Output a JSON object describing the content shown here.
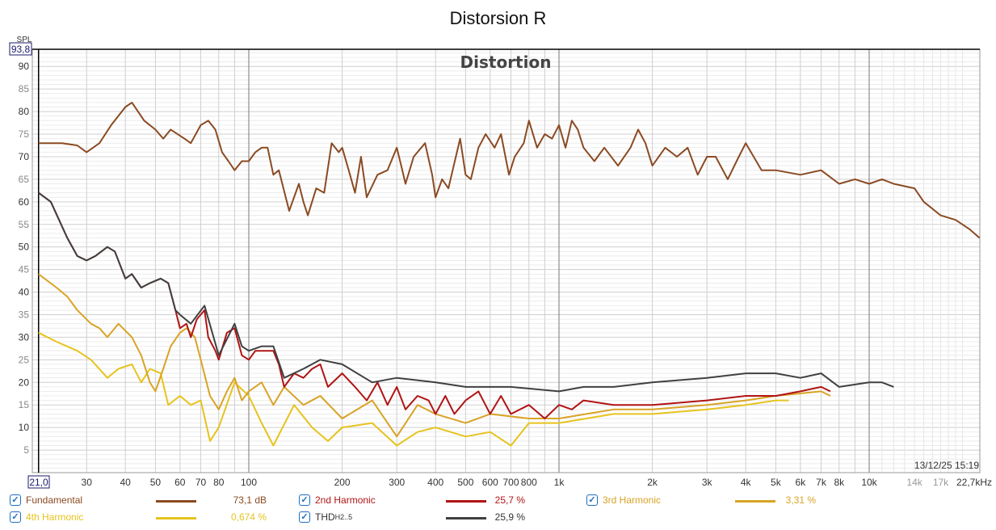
{
  "chart_data": {
    "type": "line",
    "title": "Distorsion R",
    "inner_title": "Distortion",
    "ylabel": "SPL",
    "xlabel": "Hz",
    "ylim": [
      0,
      93.8
    ],
    "xlim": [
      21.0,
      22700
    ],
    "cursor_y_label": "93,8",
    "cursor_x_label": "21,0",
    "timestamp": "13/12/25 15:19",
    "yticks": [
      5,
      10,
      15,
      20,
      25,
      30,
      35,
      40,
      45,
      50,
      55,
      60,
      65,
      70,
      75,
      80,
      85,
      90
    ],
    "xticks": [
      {
        "v": 30,
        "l": "30"
      },
      {
        "v": 40,
        "l": "40"
      },
      {
        "v": 50,
        "l": "50"
      },
      {
        "v": 60,
        "l": "60"
      },
      {
        "v": 70,
        "l": "70"
      },
      {
        "v": 80,
        "l": "80"
      },
      {
        "v": 100,
        "l": "100"
      },
      {
        "v": 200,
        "l": "200"
      },
      {
        "v": 300,
        "l": "300"
      },
      {
        "v": 400,
        "l": "400"
      },
      {
        "v": 500,
        "l": "500"
      },
      {
        "v": 600,
        "l": "600"
      },
      {
        "v": 700,
        "l": "700"
      },
      {
        "v": 800,
        "l": "800"
      },
      {
        "v": 1000,
        "l": "1k"
      },
      {
        "v": 2000,
        "l": "2k"
      },
      {
        "v": 3000,
        "l": "3k"
      },
      {
        "v": 4000,
        "l": "4k"
      },
      {
        "v": 5000,
        "l": "5k"
      },
      {
        "v": 6000,
        "l": "6k"
      },
      {
        "v": 7000,
        "l": "7k"
      },
      {
        "v": 8000,
        "l": "8k"
      },
      {
        "v": 10000,
        "l": "10k"
      },
      {
        "v": 14000,
        "l": "14k",
        "dim": true
      },
      {
        "v": 17000,
        "l": "17k",
        "dim": true
      },
      {
        "v": 22700,
        "l": "22,7kHz"
      }
    ],
    "series": [
      {
        "name": "Fundamental",
        "value": "73,1 dB",
        "color": "#8b4a22",
        "x": [
          21,
          25,
          28,
          30,
          33,
          36,
          40,
          42,
          46,
          50,
          53,
          56,
          62,
          65,
          70,
          74,
          78,
          82,
          86,
          90,
          95,
          100,
          105,
          110,
          115,
          120,
          125,
          135,
          145,
          150,
          155,
          165,
          175,
          185,
          195,
          200,
          210,
          220,
          230,
          240,
          260,
          280,
          300,
          310,
          320,
          340,
          370,
          390,
          400,
          420,
          440,
          480,
          500,
          520,
          550,
          580,
          620,
          650,
          690,
          720,
          770,
          800,
          850,
          900,
          950,
          1000,
          1050,
          1100,
          1150,
          1200,
          1300,
          1400,
          1550,
          1700,
          1800,
          1900,
          2000,
          2200,
          2400,
          2600,
          2800,
          3000,
          3200,
          3500,
          3800,
          4000,
          4500,
          5000,
          6000,
          7000,
          8000,
          9000,
          10000,
          11000,
          12000,
          14000,
          15000,
          17000,
          19000,
          21000,
          22700
        ],
        "y": [
          73,
          73,
          72.5,
          71,
          73,
          77,
          81,
          82,
          78,
          76,
          74,
          76,
          74,
          73,
          77,
          78,
          76,
          71,
          69,
          67,
          69,
          69,
          71,
          72,
          72,
          66,
          67,
          58,
          64,
          60,
          57,
          63,
          62,
          73,
          71,
          72,
          67,
          62,
          70,
          61,
          66,
          67,
          72,
          68,
          64,
          70,
          73,
          66,
          61,
          65,
          63,
          74,
          66,
          65,
          72,
          75,
          72,
          75,
          66,
          70,
          73,
          78,
          72,
          75,
          74,
          77,
          72,
          78,
          76,
          72,
          69,
          72,
          68,
          72,
          76,
          73,
          68,
          72,
          70,
          72,
          66,
          70,
          70,
          65,
          70,
          73,
          67,
          67,
          66,
          67,
          64,
          65,
          64,
          65,
          64,
          63,
          60,
          57,
          56,
          54,
          52
        ]
      },
      {
        "name": "2nd Harmonic",
        "value": "25,7 %",
        "color": "#b01414",
        "x": [
          21,
          23,
          26,
          28,
          30,
          32,
          35,
          37,
          40,
          42,
          45,
          48,
          52,
          55,
          58,
          60,
          63,
          65,
          68,
          72,
          74,
          78,
          80,
          85,
          90,
          95,
          100,
          105,
          110,
          120,
          125,
          130,
          140,
          150,
          160,
          170,
          180,
          200,
          220,
          240,
          260,
          280,
          300,
          320,
          350,
          380,
          400,
          430,
          460,
          500,
          550,
          600,
          650,
          700,
          800,
          900,
          1000,
          1100,
          1200,
          1500,
          2000,
          3000,
          4000,
          5000,
          6000,
          7000,
          7500
        ],
        "y": [
          62,
          60,
          52,
          48,
          47,
          48,
          50,
          49,
          43,
          44,
          41,
          42,
          43,
          42,
          36,
          32,
          33,
          30,
          34,
          36,
          30,
          27,
          25,
          31,
          32,
          26,
          25,
          27,
          27,
          27,
          24,
          19,
          22,
          21,
          23,
          24,
          19,
          22,
          19,
          16,
          20,
          15,
          19,
          14,
          17,
          16,
          13,
          17,
          13,
          16,
          18,
          13,
          17,
          13,
          15,
          12,
          15,
          14,
          16,
          15,
          15,
          16,
          17,
          17,
          18,
          19,
          18
        ]
      },
      {
        "name": "3rd Harmonic",
        "value": "3,31 %",
        "color": "#d9a325",
        "x": [
          21,
          24,
          26,
          28,
          31,
          33,
          35,
          38,
          42,
          45,
          48,
          50,
          53,
          56,
          60,
          63,
          67,
          70,
          75,
          80,
          85,
          90,
          95,
          100,
          110,
          120,
          130,
          150,
          170,
          200,
          250,
          300,
          350,
          400,
          500,
          600,
          800,
          1000,
          1500,
          2000,
          3000,
          4000,
          5000,
          7000,
          7500
        ],
        "y": [
          44,
          41,
          39,
          36,
          33,
          32,
          30,
          33,
          30,
          26,
          20,
          18,
          23,
          28,
          31,
          32,
          30,
          25,
          17,
          14,
          18,
          21,
          16,
          18,
          20,
          15,
          19,
          15,
          17,
          12,
          16,
          8,
          15,
          13,
          11,
          13,
          12,
          12,
          14,
          14,
          15,
          16,
          17,
          18,
          17
        ]
      },
      {
        "name": "4th Harmonic",
        "value": "0,674 %",
        "color": "#e6c31e",
        "x": [
          21,
          24,
          28,
          31,
          35,
          38,
          42,
          45,
          48,
          52,
          55,
          60,
          65,
          70,
          75,
          80,
          90,
          100,
          110,
          120,
          140,
          160,
          180,
          200,
          250,
          300,
          350,
          400,
          500,
          600,
          700,
          800,
          1000,
          1500,
          2000,
          3000,
          4000,
          5000,
          5500
        ],
        "y": [
          31,
          29,
          27,
          25,
          21,
          23,
          24,
          20,
          23,
          22,
          15,
          17,
          15,
          16,
          7,
          10,
          20,
          17,
          11,
          6,
          15,
          10,
          7,
          10,
          11,
          6,
          9,
          10,
          8,
          9,
          6,
          11,
          11,
          13,
          13,
          14,
          15,
          16,
          16
        ]
      },
      {
        "name": "THD",
        "sub": "H2..5",
        "value": "25,9 %",
        "color": "#404040",
        "x": [
          21,
          23,
          26,
          28,
          30,
          32,
          35,
          37,
          40,
          42,
          45,
          48,
          52,
          55,
          58,
          60,
          65,
          72,
          80,
          90,
          95,
          100,
          110,
          120,
          130,
          150,
          170,
          200,
          250,
          300,
          400,
          500,
          700,
          1000,
          1200,
          1500,
          2000,
          3000,
          4000,
          5000,
          6000,
          7000,
          8000,
          10000,
          11000,
          12000
        ],
        "y": [
          62,
          60,
          52,
          48,
          47,
          48,
          50,
          49,
          43,
          44,
          41,
          42,
          43,
          42,
          36,
          35,
          33,
          37,
          26,
          33,
          28,
          27,
          28,
          28,
          21,
          23,
          25,
          24,
          20,
          21,
          20,
          19,
          19,
          18,
          19,
          19,
          20,
          21,
          22,
          22,
          21,
          22,
          19,
          20,
          20,
          19
        ]
      }
    ]
  }
}
